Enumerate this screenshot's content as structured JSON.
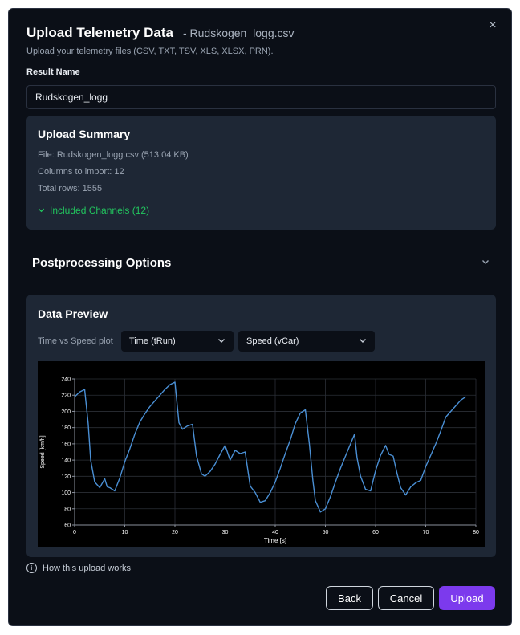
{
  "dialog": {
    "title": "Upload Telemetry Data",
    "filename": "- Rudskogen_logg.csv",
    "subtitle": "Upload your telemetry files (CSV, TXT, TSV, XLS, XLSX, PRN).",
    "close_icon": "×"
  },
  "result_name": {
    "label": "Result Name",
    "value": "Rudskogen_logg"
  },
  "summary": {
    "title": "Upload Summary",
    "file": "File: Rudskogen_logg.csv (513.04 KB)",
    "columns": "Columns to import: 12",
    "rows": "Total rows: 1555",
    "channels_toggle": "Included Channels (12)"
  },
  "postprocessing": {
    "title": "Postprocessing Options"
  },
  "preview": {
    "title": "Data Preview",
    "plot_label": "Time vs Speed plot",
    "x_select": "Time (tRun)",
    "y_select": "Speed (vCar)"
  },
  "chart_data": {
    "type": "line",
    "xlabel": "Time [s]",
    "ylabel": "Speed [km/h]",
    "xlim": [
      0,
      80
    ],
    "ylim": [
      60,
      240
    ],
    "xticks": [
      0,
      10,
      20,
      30,
      40,
      50,
      60,
      70,
      80
    ],
    "yticks": [
      60,
      80,
      100,
      120,
      140,
      160,
      180,
      200,
      220,
      240
    ],
    "grid": true,
    "line_color": "#4a8fd4",
    "series": [
      {
        "x": [
          0,
          1,
          2,
          2.7,
          3.2,
          4,
          5,
          6,
          6.5,
          7,
          8,
          9,
          10,
          11,
          12,
          13,
          14,
          15,
          16,
          17,
          18,
          19,
          20,
          20.8,
          21.5,
          22.5,
          23.5,
          24.3,
          25.3,
          26,
          27,
          28,
          29,
          30,
          31,
          32,
          33,
          34,
          35,
          36,
          37,
          38,
          39,
          40,
          41,
          42,
          43,
          44,
          45,
          46,
          46.8,
          47.5,
          48,
          49,
          50,
          51,
          52,
          53,
          54,
          55,
          55.8,
          56.3,
          57,
          58,
          59,
          60,
          61,
          62,
          62.7,
          63.5,
          64.3,
          65,
          66,
          67,
          68,
          69,
          70,
          71,
          72,
          73,
          74,
          75,
          76,
          77,
          78
        ],
        "y": [
          218,
          224,
          227,
          185,
          140,
          113,
          106,
          117,
          107,
          106,
          102,
          118,
          138,
          154,
          172,
          187,
          197,
          206,
          213,
          220,
          227,
          233,
          236,
          186,
          178,
          182,
          184,
          145,
          123,
          120,
          126,
          135,
          147,
          158,
          140,
          152,
          148,
          150,
          108,
          100,
          88,
          90,
          100,
          113,
          130,
          148,
          165,
          185,
          198,
          202,
          160,
          115,
          90,
          76,
          80,
          95,
          113,
          130,
          145,
          160,
          172,
          143,
          120,
          104,
          102,
          127,
          146,
          158,
          147,
          145,
          123,
          106,
          97,
          107,
          112,
          115,
          132,
          146,
          160,
          176,
          193,
          200,
          207,
          214,
          218
        ]
      }
    ]
  },
  "help": {
    "text": "How this upload works",
    "info_icon": "i"
  },
  "buttons": {
    "back": "Back",
    "cancel": "Cancel",
    "upload": "Upload"
  }
}
